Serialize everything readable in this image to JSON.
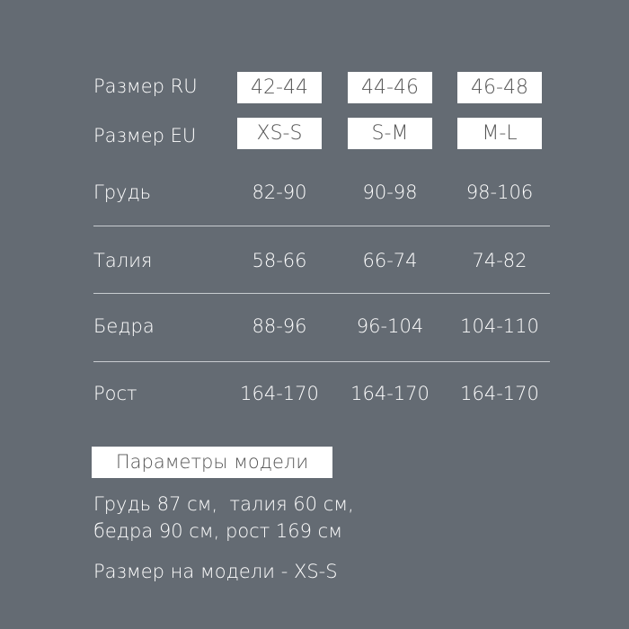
{
  "rows_header": [
    {
      "label": "Размер RU",
      "values": [
        "42-44",
        "44-46",
        "46-48"
      ]
    },
    {
      "label": "Размер EU",
      "values": [
        "XS-S",
        "S-M",
        "M-L"
      ]
    }
  ],
  "rows": [
    {
      "label": "Грудь",
      "values": [
        "82-90",
        "90-98",
        "98-106"
      ]
    },
    {
      "label": "Талия",
      "values": [
        "58-66",
        "66-74",
        "74-82"
      ]
    },
    {
      "label": "Бедра",
      "values": [
        "88-96",
        "96-104",
        "104-110"
      ]
    },
    {
      "label": "Рост",
      "values": [
        "164-170",
        "164-170",
        "164-170"
      ]
    }
  ],
  "model": {
    "title": "Параметры модели",
    "line1": "Грудь 87 см,  талия 60 см,",
    "line2": "бедра 90 см, рост 169 см",
    "size": "Размер на модели - XS-S"
  },
  "colors": {
    "background": "#646b73",
    "box": "#ffffff",
    "box_text": "#555555"
  }
}
